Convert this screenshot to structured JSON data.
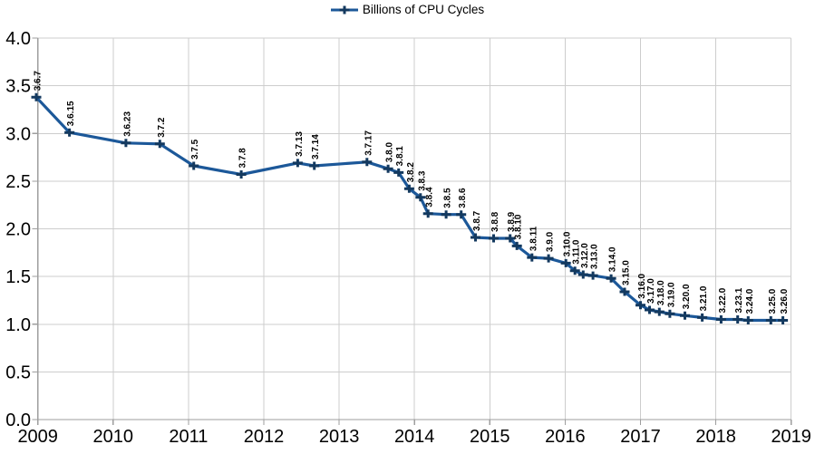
{
  "legend": {
    "label": "Billions of CPU Cycles",
    "position": "top-center"
  },
  "chart_data": {
    "type": "line",
    "title": "",
    "legend_entries": [
      "Billions of CPU Cycles"
    ],
    "legend_position": "top-center",
    "grid": true,
    "x_axis": {
      "min": 2009,
      "max": 2019,
      "tick_step": 1,
      "tick_labels": [
        "2009",
        "2010",
        "2011",
        "2012",
        "2013",
        "2014",
        "2015",
        "2016",
        "2017",
        "2018",
        "2019"
      ]
    },
    "y_axis": {
      "min": 0.0,
      "max": 4.0,
      "tick_step": 0.5,
      "tick_labels": [
        "0.0",
        "0.5",
        "1.0",
        "1.5",
        "2.0",
        "2.5",
        "3.0",
        "3.5",
        "4.0"
      ]
    },
    "colors": {
      "line": "#1c5899",
      "marker": "#13395f",
      "grid": "#cdcdcd",
      "axis": "#9e9e9e",
      "text": "#000000"
    },
    "series": [
      {
        "name": "Billions of CPU Cycles",
        "marker": "plus",
        "points": [
          {
            "label": "3.6.7",
            "x": 2008.98,
            "y": 3.38
          },
          {
            "label": "3.6.15",
            "x": 2009.42,
            "y": 3.01
          },
          {
            "label": "3.6.23",
            "x": 2010.17,
            "y": 2.9
          },
          {
            "label": "3.7.2",
            "x": 2010.62,
            "y": 2.89
          },
          {
            "label": "3.7.5",
            "x": 2011.07,
            "y": 2.66
          },
          {
            "label": "3.7.8",
            "x": 2011.7,
            "y": 2.57
          },
          {
            "label": "3.7.13",
            "x": 2012.45,
            "y": 2.69
          },
          {
            "label": "3.7.14",
            "x": 2012.67,
            "y": 2.66
          },
          {
            "label": "3.7.17",
            "x": 2013.37,
            "y": 2.7
          },
          {
            "label": "3.8.0",
            "x": 2013.65,
            "y": 2.63
          },
          {
            "label": "3.8.1",
            "x": 2013.79,
            "y": 2.59
          },
          {
            "label": "3.8.2",
            "x": 2013.93,
            "y": 2.42
          },
          {
            "label": "3.8.3",
            "x": 2014.08,
            "y": 2.33
          },
          {
            "label": "3.8.4",
            "x": 2014.18,
            "y": 2.16
          },
          {
            "label": "3.8.5",
            "x": 2014.42,
            "y": 2.15
          },
          {
            "label": "3.8.6",
            "x": 2014.62,
            "y": 2.15
          },
          {
            "label": "3.8.7",
            "x": 2014.81,
            "y": 1.91
          },
          {
            "label": "3.8.8",
            "x": 2015.05,
            "y": 1.9
          },
          {
            "label": "3.8.9",
            "x": 2015.27,
            "y": 1.9
          },
          {
            "label": "3.8.10",
            "x": 2015.36,
            "y": 1.82
          },
          {
            "label": "3.8.11",
            "x": 2015.56,
            "y": 1.7
          },
          {
            "label": "3.9.0",
            "x": 2015.78,
            "y": 1.69
          },
          {
            "label": "3.10.0",
            "x": 2016.01,
            "y": 1.64
          },
          {
            "label": "3.11.0",
            "x": 2016.13,
            "y": 1.56
          },
          {
            "label": "3.12.0",
            "x": 2016.24,
            "y": 1.52
          },
          {
            "label": "3.13.0",
            "x": 2016.37,
            "y": 1.51
          },
          {
            "label": "3.14.0",
            "x": 2016.61,
            "y": 1.48
          },
          {
            "label": "3.15.0",
            "x": 2016.79,
            "y": 1.34
          },
          {
            "label": "3.16.0",
            "x": 2017.0,
            "y": 1.2
          },
          {
            "label": "3.17.0",
            "x": 2017.12,
            "y": 1.15
          },
          {
            "label": "3.18.0",
            "x": 2017.25,
            "y": 1.13
          },
          {
            "label": "3.19.0",
            "x": 2017.39,
            "y": 1.11
          },
          {
            "label": "3.20.0",
            "x": 2017.59,
            "y": 1.09
          },
          {
            "label": "3.21.0",
            "x": 2017.82,
            "y": 1.07
          },
          {
            "label": "3.22.0",
            "x": 2018.07,
            "y": 1.05
          },
          {
            "label": "3.23.1",
            "x": 2018.29,
            "y": 1.05
          },
          {
            "label": "3.24.0",
            "x": 2018.43,
            "y": 1.04
          },
          {
            "label": "3.25.0",
            "x": 2018.73,
            "y": 1.04
          },
          {
            "label": "3.26.0",
            "x": 2018.89,
            "y": 1.04
          }
        ]
      }
    ]
  }
}
